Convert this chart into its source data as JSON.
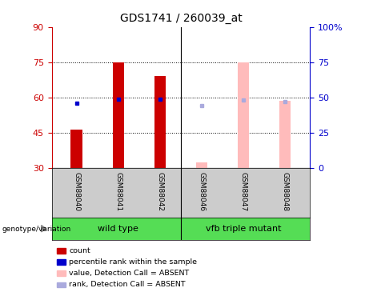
{
  "title": "GDS1741 / 260039_at",
  "samples": [
    "GSM88040",
    "GSM88041",
    "GSM88042",
    "GSM88046",
    "GSM88047",
    "GSM88048"
  ],
  "ylim_left": [
    30,
    90
  ],
  "ylim_right": [
    0,
    100
  ],
  "yticks_left": [
    30,
    45,
    60,
    75,
    90
  ],
  "yticks_right": [
    0,
    25,
    50,
    75,
    100
  ],
  "ytick_labels_right": [
    "0",
    "25",
    "50",
    "75",
    "100%"
  ],
  "present_color": "#cc0000",
  "absent_color": "#ffbbbb",
  "rank_present_color": "#0000cc",
  "rank_absent_color": "#aaaadd",
  "samples_data": [
    {
      "sample": "GSM88040",
      "absent": false,
      "value": 46.5,
      "rank": 46
    },
    {
      "sample": "GSM88041",
      "absent": false,
      "value": 75.0,
      "rank": 49
    },
    {
      "sample": "GSM88042",
      "absent": false,
      "value": 69.0,
      "rank": 49
    },
    {
      "sample": "GSM88046",
      "absent": true,
      "value": 32.5,
      "rank": 44
    },
    {
      "sample": "GSM88047",
      "absent": true,
      "value": 75.0,
      "rank": 48
    },
    {
      "sample": "GSM88048",
      "absent": true,
      "value": 58.5,
      "rank": 47
    }
  ],
  "legend_items": [
    {
      "color": "#cc0000",
      "label": "count"
    },
    {
      "color": "#0000cc",
      "label": "percentile rank within the sample"
    },
    {
      "color": "#ffbbbb",
      "label": "value, Detection Call = ABSENT"
    },
    {
      "color": "#aaaadd",
      "label": "rank, Detection Call = ABSENT"
    }
  ],
  "group_label_text": "genotype/variation",
  "background_color": "#ffffff",
  "plot_bg_color": "#ffffff",
  "label_area_bg": "#cccccc",
  "group_bg": "#55dd55",
  "group1_label": "wild type",
  "group2_label": "vfb triple mutant"
}
